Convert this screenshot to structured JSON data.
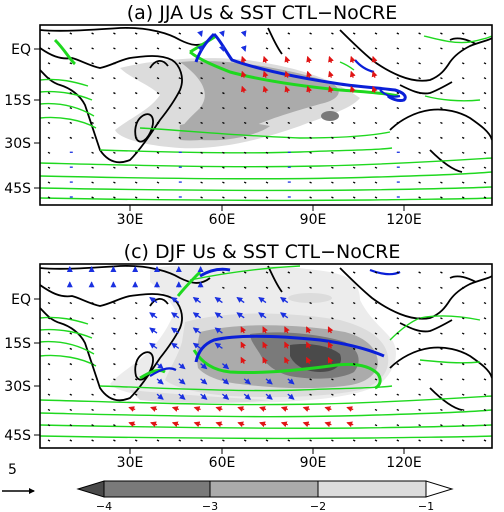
{
  "chart_data": [
    {
      "type": "map",
      "title": "(a) JJA Us & SST CTL−NoCRE",
      "lon_range": [
        0,
        150
      ],
      "lat_range": [
        -50,
        12
      ],
      "x_ticks": [
        "30E",
        "60E",
        "90E",
        "120E"
      ],
      "y_ticks": [
        "EQ",
        "15S",
        "30S",
        "45S"
      ],
      "contour_color_positive": "#1fd81f",
      "contour_color_negative": "#0a1fd8",
      "vector_colors": {
        "positive": "#e01515",
        "negative": "#1a30e0",
        "neutral": "#000000"
      }
    },
    {
      "type": "map",
      "title": "(c) DJF Us & SST CTL−NoCRE",
      "lon_range": [
        0,
        150
      ],
      "lat_range": [
        -50,
        12
      ],
      "x_ticks": [
        "30E",
        "60E",
        "90E",
        "120E"
      ],
      "y_ticks": [
        "EQ",
        "15S",
        "30S",
        "45S"
      ],
      "contour_color_positive": "#1fd81f",
      "contour_color_negative": "#0a1fd8",
      "vector_colors": {
        "positive": "#e01515",
        "negative": "#1a30e0",
        "neutral": "#000000"
      }
    }
  ],
  "colorbar": {
    "ticks": [
      "−4",
      "−3",
      "−2",
      "−1"
    ],
    "levels": [
      -4,
      -3,
      -2,
      -1
    ],
    "colors": [
      "#4a4a4a",
      "#7a7a7a",
      "#ababab",
      "#dcdcdc"
    ]
  },
  "reference_vector": {
    "value": "5"
  }
}
